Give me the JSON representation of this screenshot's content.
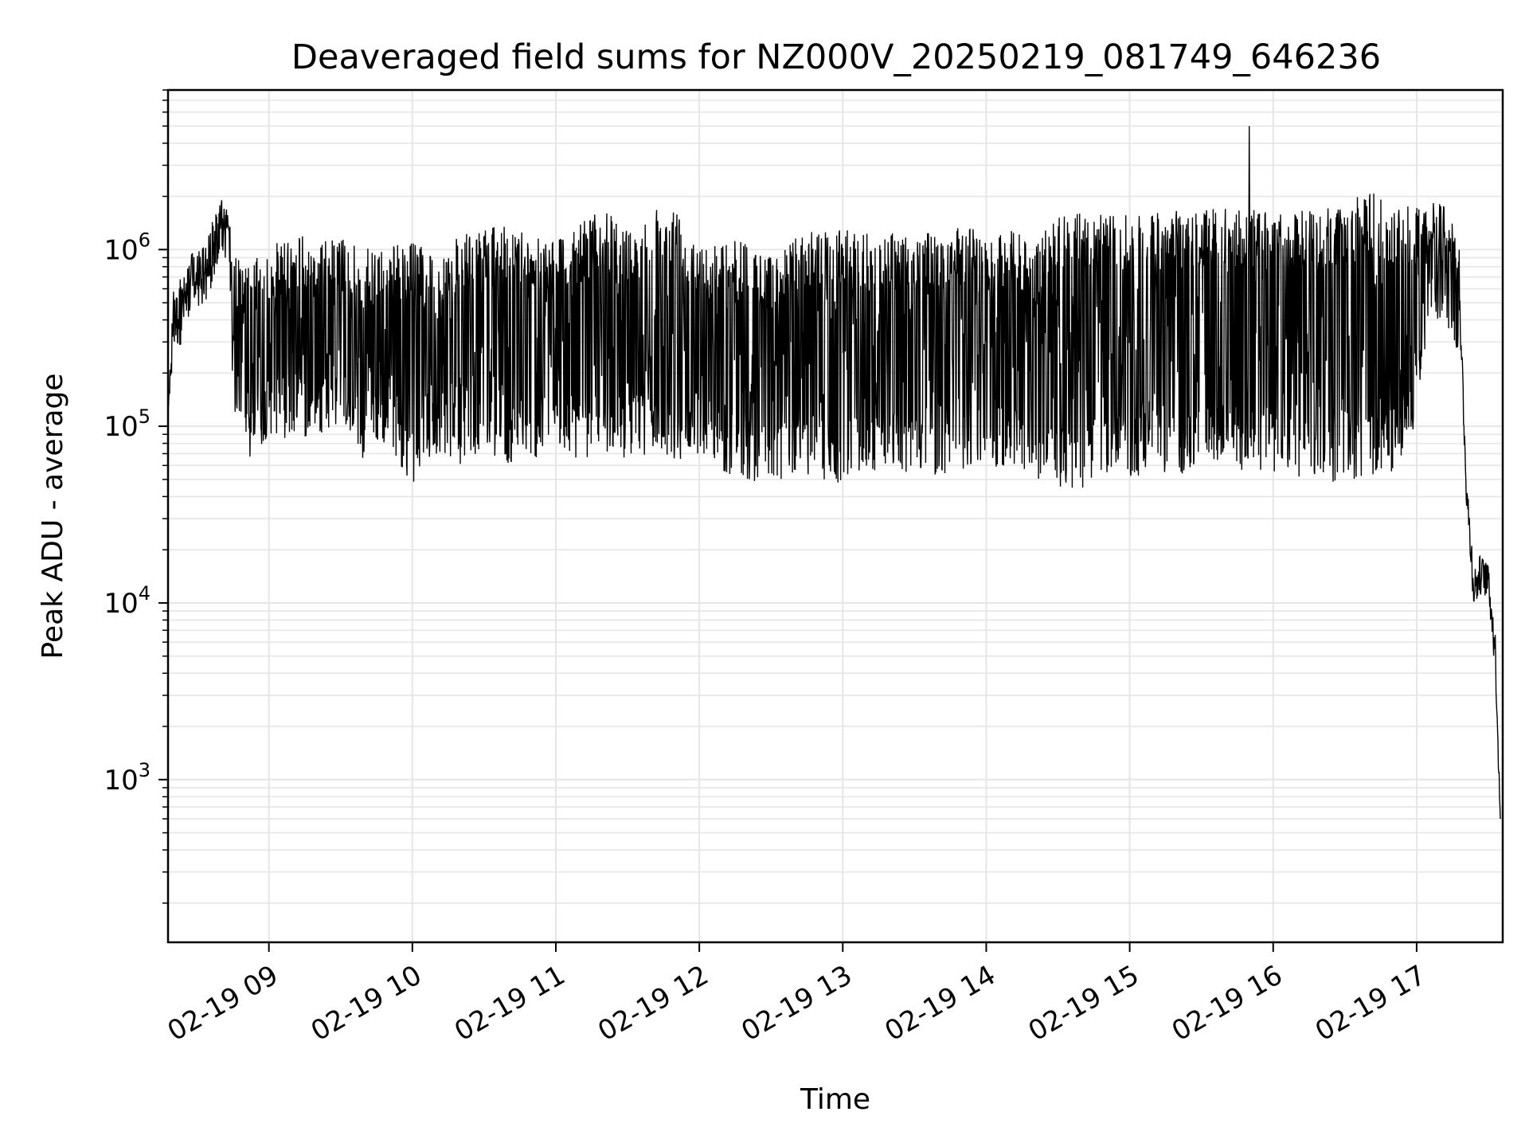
{
  "chart_data": {
    "type": "line",
    "title": "Deaveraged field sums for NZ000V_20250219_081749_646236",
    "xlabel": "Time",
    "ylabel": "Peak ADU - average",
    "yscale": "log",
    "grid": true,
    "line_color": "#000000",
    "grid_color": "#e6e6e6",
    "xlim": [
      "2025-02-19 08:17:49",
      "2025-02-19 17:36:00"
    ],
    "ylim": [
      120,
      8000000
    ],
    "x_tick_labels": [
      {
        "time": "2025-02-19 09:00",
        "label": "02-19 09"
      },
      {
        "time": "2025-02-19 10:00",
        "label": "02-19 10"
      },
      {
        "time": "2025-02-19 11:00",
        "label": "02-19 11"
      },
      {
        "time": "2025-02-19 12:00",
        "label": "02-19 12"
      },
      {
        "time": "2025-02-19 13:00",
        "label": "02-19 13"
      },
      {
        "time": "2025-02-19 14:00",
        "label": "02-19 14"
      },
      {
        "time": "2025-02-19 15:00",
        "label": "02-19 15"
      },
      {
        "time": "2025-02-19 16:00",
        "label": "02-19 16"
      },
      {
        "time": "2025-02-19 17:00",
        "label": "02-19 17"
      }
    ],
    "y_tick_labels": [
      {
        "value": 1000,
        "base": "10",
        "exp": "3"
      },
      {
        "value": 10000,
        "base": "10",
        "exp": "4"
      },
      {
        "value": 100000,
        "base": "10",
        "exp": "5"
      },
      {
        "value": 1000000,
        "base": "10",
        "exp": "6"
      }
    ],
    "series": [
      {
        "x": [
          "2025-02-19 08:18",
          "2025-02-19 08:20",
          "2025-02-19 08:24",
          "2025-02-19 08:28",
          "2025-02-19 08:32",
          "2025-02-19 08:36",
          "2025-02-19 08:40",
          "2025-02-19 08:43",
          "2025-02-19 08:45",
          "2025-02-19 08:47",
          "2025-02-19 08:50",
          "2025-02-19 08:53",
          "2025-02-19 08:55",
          "2025-02-19 09:00",
          "2025-02-19 09:10",
          "2025-02-19 09:20",
          "2025-02-19 09:30",
          "2025-02-19 09:40",
          "2025-02-19 09:50",
          "2025-02-19 10:00",
          "2025-02-19 10:10",
          "2025-02-19 10:20",
          "2025-02-19 10:30",
          "2025-02-19 10:40",
          "2025-02-19 10:50",
          "2025-02-19 11:00",
          "2025-02-19 11:10",
          "2025-02-19 11:20",
          "2025-02-19 11:30",
          "2025-02-19 11:40",
          "2025-02-19 11:50",
          "2025-02-19 12:00",
          "2025-02-19 12:10",
          "2025-02-19 12:20",
          "2025-02-19 12:30",
          "2025-02-19 12:40",
          "2025-02-19 12:50",
          "2025-02-19 13:00",
          "2025-02-19 13:10",
          "2025-02-19 13:20",
          "2025-02-19 13:30",
          "2025-02-19 13:40",
          "2025-02-19 13:50",
          "2025-02-19 14:00",
          "2025-02-19 14:10",
          "2025-02-19 14:20",
          "2025-02-19 14:30",
          "2025-02-19 14:40",
          "2025-02-19 14:50",
          "2025-02-19 15:00",
          "2025-02-19 15:10",
          "2025-02-19 15:20",
          "2025-02-19 15:30",
          "2025-02-19 15:40",
          "2025-02-19 15:50",
          "2025-02-19 16:00",
          "2025-02-19 16:10",
          "2025-02-19 16:20",
          "2025-02-19 16:30",
          "2025-02-19 16:40",
          "2025-02-19 16:50",
          "2025-02-19 17:00",
          "2025-02-19 17:05",
          "2025-02-19 17:10",
          "2025-02-19 17:15",
          "2025-02-19 17:18",
          "2025-02-19 17:21",
          "2025-02-19 17:24",
          "2025-02-19 17:27",
          "2025-02-19 17:30",
          "2025-02-19 17:33",
          "2025-02-19 17:35"
        ],
        "values": [
          130000,
          500000,
          600000,
          800000,
          900000,
          1100000,
          1800000,
          1500000,
          300000,
          600000,
          250000,
          100000,
          80000,
          300000,
          200000,
          350000,
          150000,
          400000,
          250000,
          200000,
          150000,
          120000,
          200000,
          400000,
          300000,
          500000,
          350000,
          300000,
          450000,
          500000,
          600000,
          400000,
          300000,
          200000,
          150000,
          400000,
          200000,
          150000,
          120000,
          130000,
          110000,
          100000,
          140000,
          120000,
          180000,
          250000,
          400000,
          150000,
          300000,
          350000,
          250000,
          380000,
          400000,
          450000,
          420000,
          500000,
          400000,
          450000,
          600000,
          700000,
          650000,
          650000,
          800000,
          1200000,
          1000000,
          500000,
          40000,
          12000,
          15000,
          14000,
          5000,
          600
        ],
        "envelope_upper": [
          130000,
          650000,
          800000,
          950000,
          1000000,
          1400000,
          2000000,
          1700000,
          900000,
          950000,
          800000,
          900000,
          900000,
          1000000,
          1300000,
          1100000,
          1200000,
          1000000,
          1100000,
          1100000,
          1000000,
          1200000,
          1300000,
          1400000,
          1300000,
          1200000,
          1400000,
          1700000,
          1300000,
          1800000,
          1800000,
          1200000,
          1100000,
          1200000,
          900000,
          1300000,
          1300000,
          1300000,
          1250000,
          1300000,
          1300000,
          1200000,
          1400000,
          1200000,
          1300000,
          1100000,
          1600000,
          1600000,
          1600000,
          1600000,
          1600000,
          1700000,
          1700000,
          1700000,
          1750000,
          1700000,
          1650000,
          1700000,
          1800000,
          2200000,
          1800000,
          1800000,
          2000000,
          2000000,
          1500000,
          1000000,
          80000,
          20000,
          18000,
          16000,
          10000,
          600
        ],
        "envelope_lower": [
          130000,
          250000,
          300000,
          500000,
          450000,
          600000,
          900000,
          900000,
          120000,
          110000,
          80000,
          60000,
          70000,
          90000,
          80000,
          90000,
          100000,
          60000,
          80000,
          45000,
          70000,
          60000,
          75000,
          60000,
          65000,
          70000,
          65000,
          70000,
          65000,
          70000,
          60000,
          70000,
          55000,
          50000,
          45000,
          55000,
          50000,
          45000,
          55000,
          55000,
          55000,
          50000,
          55000,
          55000,
          60000,
          50000,
          45000,
          42000,
          55000,
          50000,
          55000,
          50000,
          55000,
          60000,
          55000,
          55000,
          50000,
          45000,
          50000,
          50000,
          55000,
          100000,
          350000,
          350000,
          350000,
          200000,
          12000,
          9000,
          10000,
          10000,
          3000,
          600
        ]
      }
    ],
    "spike": {
      "time": "2025-02-19 15:50",
      "value": 5000000
    }
  }
}
